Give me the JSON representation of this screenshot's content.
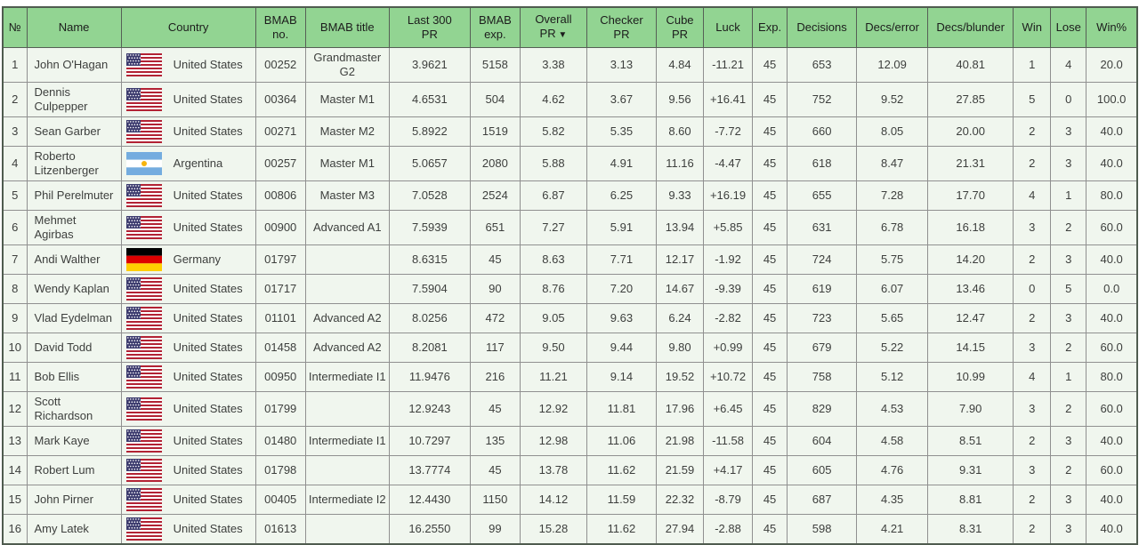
{
  "colors": {
    "header_bg": "#92d492",
    "header_border": "#565f56",
    "row_bg": "#f0f6ee",
    "row_border": "#909090",
    "text": "#3d3f3d"
  },
  "table": {
    "sort_indicator": "▼",
    "columns": [
      {
        "key": "num",
        "label": "№"
      },
      {
        "key": "name",
        "label": "Name"
      },
      {
        "key": "country",
        "label": "Country"
      },
      {
        "key": "bmab_no",
        "label": "BMAB\nno."
      },
      {
        "key": "bmab_title",
        "label": "BMAB title"
      },
      {
        "key": "last300_pr",
        "label": "Last 300\nPR"
      },
      {
        "key": "bmab_exp",
        "label": "BMAB\nexp."
      },
      {
        "key": "overall_pr",
        "label": "Overall\nPR",
        "sorted": true
      },
      {
        "key": "checker_pr",
        "label": "Checker\nPR"
      },
      {
        "key": "cube_pr",
        "label": "Cube\nPR"
      },
      {
        "key": "luck",
        "label": "Luck"
      },
      {
        "key": "exp",
        "label": "Exp."
      },
      {
        "key": "decisions",
        "label": "Decisions"
      },
      {
        "key": "decs_error",
        "label": "Decs/error"
      },
      {
        "key": "decs_blunder",
        "label": "Decs/blunder"
      },
      {
        "key": "win",
        "label": "Win"
      },
      {
        "key": "lose",
        "label": "Lose"
      },
      {
        "key": "win_pct",
        "label": "Win%"
      }
    ],
    "rows": [
      {
        "num": "1",
        "name": "John O'Hagan",
        "country_code": "us",
        "country": "United States",
        "bmab_no": "00252",
        "bmab_title": "Grandmaster G2",
        "last300_pr": "3.9621",
        "bmab_exp": "5158",
        "overall_pr": "3.38",
        "checker_pr": "3.13",
        "cube_pr": "4.84",
        "luck": "-11.21",
        "exp": "45",
        "decisions": "653",
        "decs_error": "12.09",
        "decs_blunder": "40.81",
        "win": "1",
        "lose": "4",
        "win_pct": "20.0"
      },
      {
        "num": "2",
        "name": "Dennis Culpepper",
        "country_code": "us",
        "country": "United States",
        "bmab_no": "00364",
        "bmab_title": "Master M1",
        "last300_pr": "4.6531",
        "bmab_exp": "504",
        "overall_pr": "4.62",
        "checker_pr": "3.67",
        "cube_pr": "9.56",
        "luck": "+16.41",
        "exp": "45",
        "decisions": "752",
        "decs_error": "9.52",
        "decs_blunder": "27.85",
        "win": "5",
        "lose": "0",
        "win_pct": "100.0"
      },
      {
        "num": "3",
        "name": "Sean Garber",
        "country_code": "us",
        "country": "United States",
        "bmab_no": "00271",
        "bmab_title": "Master M2",
        "last300_pr": "5.8922",
        "bmab_exp": "1519",
        "overall_pr": "5.82",
        "checker_pr": "5.35",
        "cube_pr": "8.60",
        "luck": "-7.72",
        "exp": "45",
        "decisions": "660",
        "decs_error": "8.05",
        "decs_blunder": "20.00",
        "win": "2",
        "lose": "3",
        "win_pct": "40.0"
      },
      {
        "num": "4",
        "name": "Roberto Litzenberger",
        "country_code": "ar",
        "country": "Argentina",
        "bmab_no": "00257",
        "bmab_title": "Master M1",
        "last300_pr": "5.0657",
        "bmab_exp": "2080",
        "overall_pr": "5.88",
        "checker_pr": "4.91",
        "cube_pr": "11.16",
        "luck": "-4.47",
        "exp": "45",
        "decisions": "618",
        "decs_error": "8.47",
        "decs_blunder": "21.31",
        "win": "2",
        "lose": "3",
        "win_pct": "40.0"
      },
      {
        "num": "5",
        "name": "Phil Perelmuter",
        "country_code": "us",
        "country": "United States",
        "bmab_no": "00806",
        "bmab_title": "Master M3",
        "last300_pr": "7.0528",
        "bmab_exp": "2524",
        "overall_pr": "6.87",
        "checker_pr": "6.25",
        "cube_pr": "9.33",
        "luck": "+16.19",
        "exp": "45",
        "decisions": "655",
        "decs_error": "7.28",
        "decs_blunder": "17.70",
        "win": "4",
        "lose": "1",
        "win_pct": "80.0"
      },
      {
        "num": "6",
        "name": "Mehmet Agirbas",
        "country_code": "us",
        "country": "United States",
        "bmab_no": "00900",
        "bmab_title": "Advanced A1",
        "last300_pr": "7.5939",
        "bmab_exp": "651",
        "overall_pr": "7.27",
        "checker_pr": "5.91",
        "cube_pr": "13.94",
        "luck": "+5.85",
        "exp": "45",
        "decisions": "631",
        "decs_error": "6.78",
        "decs_blunder": "16.18",
        "win": "3",
        "lose": "2",
        "win_pct": "60.0"
      },
      {
        "num": "7",
        "name": "Andi Walther",
        "country_code": "de",
        "country": "Germany",
        "bmab_no": "01797",
        "bmab_title": "",
        "last300_pr": "8.6315",
        "bmab_exp": "45",
        "overall_pr": "8.63",
        "checker_pr": "7.71",
        "cube_pr": "12.17",
        "luck": "-1.92",
        "exp": "45",
        "decisions": "724",
        "decs_error": "5.75",
        "decs_blunder": "14.20",
        "win": "2",
        "lose": "3",
        "win_pct": "40.0"
      },
      {
        "num": "8",
        "name": "Wendy Kaplan",
        "country_code": "us",
        "country": "United States",
        "bmab_no": "01717",
        "bmab_title": "",
        "last300_pr": "7.5904",
        "bmab_exp": "90",
        "overall_pr": "8.76",
        "checker_pr": "7.20",
        "cube_pr": "14.67",
        "luck": "-9.39",
        "exp": "45",
        "decisions": "619",
        "decs_error": "6.07",
        "decs_blunder": "13.46",
        "win": "0",
        "lose": "5",
        "win_pct": "0.0"
      },
      {
        "num": "9",
        "name": "Vlad Eydelman",
        "country_code": "us",
        "country": "United States",
        "bmab_no": "01101",
        "bmab_title": "Advanced A2",
        "last300_pr": "8.0256",
        "bmab_exp": "472",
        "overall_pr": "9.05",
        "checker_pr": "9.63",
        "cube_pr": "6.24",
        "luck": "-2.82",
        "exp": "45",
        "decisions": "723",
        "decs_error": "5.65",
        "decs_blunder": "12.47",
        "win": "2",
        "lose": "3",
        "win_pct": "40.0"
      },
      {
        "num": "10",
        "name": "David Todd",
        "country_code": "us",
        "country": "United States",
        "bmab_no": "01458",
        "bmab_title": "Advanced A2",
        "last300_pr": "8.2081",
        "bmab_exp": "117",
        "overall_pr": "9.50",
        "checker_pr": "9.44",
        "cube_pr": "9.80",
        "luck": "+0.99",
        "exp": "45",
        "decisions": "679",
        "decs_error": "5.22",
        "decs_blunder": "14.15",
        "win": "3",
        "lose": "2",
        "win_pct": "60.0"
      },
      {
        "num": "11",
        "name": "Bob Ellis",
        "country_code": "us",
        "country": "United States",
        "bmab_no": "00950",
        "bmab_title": "Intermediate I1",
        "last300_pr": "11.9476",
        "bmab_exp": "216",
        "overall_pr": "11.21",
        "checker_pr": "9.14",
        "cube_pr": "19.52",
        "luck": "+10.72",
        "exp": "45",
        "decisions": "758",
        "decs_error": "5.12",
        "decs_blunder": "10.99",
        "win": "4",
        "lose": "1",
        "win_pct": "80.0"
      },
      {
        "num": "12",
        "name": "Scott Richardson",
        "country_code": "us",
        "country": "United States",
        "bmab_no": "01799",
        "bmab_title": "",
        "last300_pr": "12.9243",
        "bmab_exp": "45",
        "overall_pr": "12.92",
        "checker_pr": "11.81",
        "cube_pr": "17.96",
        "luck": "+6.45",
        "exp": "45",
        "decisions": "829",
        "decs_error": "4.53",
        "decs_blunder": "7.90",
        "win": "3",
        "lose": "2",
        "win_pct": "60.0"
      },
      {
        "num": "13",
        "name": "Mark Kaye",
        "country_code": "us",
        "country": "United States",
        "bmab_no": "01480",
        "bmab_title": "Intermediate I1",
        "last300_pr": "10.7297",
        "bmab_exp": "135",
        "overall_pr": "12.98",
        "checker_pr": "11.06",
        "cube_pr": "21.98",
        "luck": "-11.58",
        "exp": "45",
        "decisions": "604",
        "decs_error": "4.58",
        "decs_blunder": "8.51",
        "win": "2",
        "lose": "3",
        "win_pct": "40.0"
      },
      {
        "num": "14",
        "name": "Robert Lum",
        "country_code": "us",
        "country": "United States",
        "bmab_no": "01798",
        "bmab_title": "",
        "last300_pr": "13.7774",
        "bmab_exp": "45",
        "overall_pr": "13.78",
        "checker_pr": "11.62",
        "cube_pr": "21.59",
        "luck": "+4.17",
        "exp": "45",
        "decisions": "605",
        "decs_error": "4.76",
        "decs_blunder": "9.31",
        "win": "3",
        "lose": "2",
        "win_pct": "60.0"
      },
      {
        "num": "15",
        "name": "John Pirner",
        "country_code": "us",
        "country": "United States",
        "bmab_no": "00405",
        "bmab_title": "Intermediate I2",
        "last300_pr": "12.4430",
        "bmab_exp": "1150",
        "overall_pr": "14.12",
        "checker_pr": "11.59",
        "cube_pr": "22.32",
        "luck": "-8.79",
        "exp": "45",
        "decisions": "687",
        "decs_error": "4.35",
        "decs_blunder": "8.81",
        "win": "2",
        "lose": "3",
        "win_pct": "40.0"
      },
      {
        "num": "16",
        "name": "Amy Latek",
        "country_code": "us",
        "country": "United States",
        "bmab_no": "01613",
        "bmab_title": "",
        "last300_pr": "16.2550",
        "bmab_exp": "99",
        "overall_pr": "15.28",
        "checker_pr": "11.62",
        "cube_pr": "27.94",
        "luck": "-2.88",
        "exp": "45",
        "decisions": "598",
        "decs_error": "4.21",
        "decs_blunder": "8.31",
        "win": "2",
        "lose": "3",
        "win_pct": "40.0"
      }
    ]
  }
}
